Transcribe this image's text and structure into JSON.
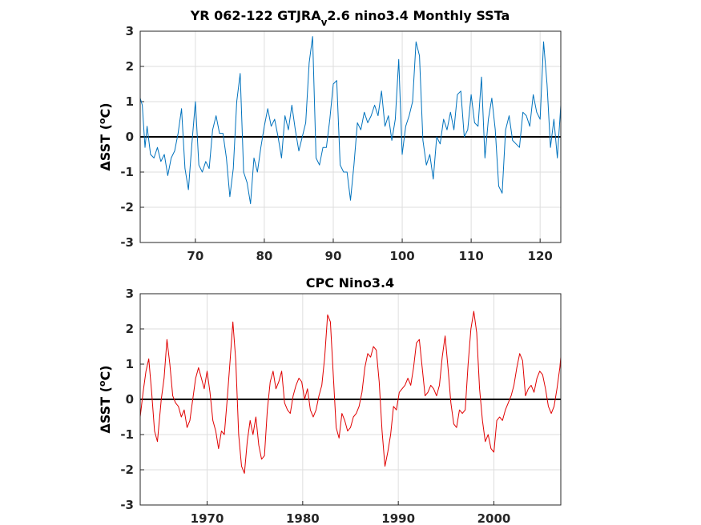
{
  "chart_data": [
    {
      "type": "line",
      "title_main": "YR 062-122 GTJRA",
      "title_sub": "v",
      "title_rest": "2.6 nino3.4 Monthly SSTa",
      "ylabel_delta": "Δ",
      "ylabel_text": "SST (",
      "ylabel_degree": "o",
      "ylabel_unit": "C)",
      "xlim": [
        62,
        123
      ],
      "ylim": [
        -3,
        3
      ],
      "xticks": [
        70,
        80,
        90,
        100,
        110,
        120
      ],
      "xtick_labels": [
        "70",
        "80",
        "90",
        "100",
        "110",
        "120"
      ],
      "yticks": [
        -3,
        -2,
        -1,
        0,
        1,
        2,
        3
      ],
      "ytick_labels": [
        "-3",
        "-2",
        "-1",
        "0",
        "1",
        "2",
        "3"
      ],
      "grid": true,
      "zero_line": true,
      "color": "#0072BD",
      "series": [
        {
          "x": [
            62.0,
            62.3,
            62.7,
            63.0,
            63.5,
            64.0,
            64.5,
            65.0,
            65.5,
            66.0,
            66.5,
            67.0,
            67.5,
            68.0,
            68.5,
            69.0,
            69.5,
            70.0,
            70.5,
            71.0,
            71.5,
            72.0,
            72.5,
            73.0,
            73.5,
            74.0,
            74.5,
            75.0,
            75.5,
            76.0,
            76.5,
            77.0,
            77.5,
            78.0,
            78.5,
            79.0,
            79.5,
            80.0,
            80.5,
            81.0,
            81.5,
            82.0,
            82.5,
            83.0,
            83.5,
            84.0,
            84.5,
            85.0,
            85.5,
            86.0,
            86.5,
            87.0,
            87.5,
            88.0,
            88.5,
            89.0,
            89.5,
            90.0,
            90.5,
            91.0,
            91.5,
            92.0,
            92.5,
            93.0,
            93.5,
            94.0,
            94.5,
            95.0,
            95.5,
            96.0,
            96.5,
            97.0,
            97.5,
            98.0,
            98.5,
            99.0,
            99.5,
            100.0,
            100.5,
            101.0,
            101.5,
            102.0,
            102.5,
            103.0,
            103.5,
            104.0,
            104.5,
            105.0,
            105.5,
            106.0,
            106.5,
            107.0,
            107.5,
            108.0,
            108.5,
            109.0,
            109.5,
            110.0,
            110.5,
            111.0,
            111.5,
            112.0,
            112.5,
            113.0,
            113.5,
            114.0,
            114.5,
            115.0,
            115.5,
            116.0,
            116.5,
            117.0,
            117.5,
            118.0,
            118.5,
            119.0,
            119.5,
            120.0,
            120.5,
            121.0,
            121.5,
            122.0,
            122.5,
            123.0
          ],
          "y": [
            1.1,
            0.9,
            -0.3,
            0.3,
            -0.5,
            -0.6,
            -0.3,
            -0.7,
            -0.5,
            -1.1,
            -0.6,
            -0.4,
            0.1,
            0.8,
            -0.9,
            -1.5,
            -0.2,
            1.0,
            -0.8,
            -1.0,
            -0.7,
            -0.9,
            0.2,
            0.6,
            0.1,
            0.1,
            -0.6,
            -1.7,
            -0.9,
            1.0,
            1.8,
            -1.0,
            -1.3,
            -1.9,
            -0.6,
            -1.0,
            -0.3,
            0.3,
            0.8,
            0.3,
            0.5,
            0.0,
            -0.6,
            0.6,
            0.2,
            0.9,
            0.2,
            -0.4,
            0.0,
            0.4,
            2.1,
            2.85,
            -0.6,
            -0.8,
            -0.3,
            -0.3,
            0.5,
            1.5,
            1.6,
            -0.8,
            -1.0,
            -1.0,
            -1.8,
            -0.8,
            0.4,
            0.2,
            0.7,
            0.4,
            0.6,
            0.9,
            0.6,
            1.3,
            0.3,
            0.6,
            -0.1,
            0.5,
            2.2,
            -0.5,
            0.3,
            0.6,
            1.0,
            2.7,
            2.3,
            -0.1,
            -0.8,
            -0.5,
            -1.2,
            0.0,
            -0.2,
            0.5,
            0.2,
            0.7,
            0.2,
            1.2,
            1.3,
            0.0,
            0.2,
            1.2,
            0.4,
            0.3,
            1.7,
            -0.6,
            0.5,
            1.1,
            0.2,
            -1.4,
            -1.6,
            0.2,
            0.6,
            -0.1,
            -0.2,
            -0.3,
            0.7,
            0.6,
            0.3,
            1.2,
            0.7,
            0.5,
            2.7,
            1.5,
            -0.3,
            0.5,
            -0.6,
            0.9
          ]
        }
      ]
    },
    {
      "type": "line",
      "title": "CPC Nino3.4",
      "ylabel_delta": "Δ",
      "ylabel_text": "SST (",
      "ylabel_degree": "o",
      "ylabel_unit": "C)",
      "xlim": [
        1963,
        2007
      ],
      "ylim": [
        -3,
        3
      ],
      "xticks": [
        1970,
        1980,
        1990,
        2000
      ],
      "xtick_labels": [
        "1970",
        "1980",
        "1990",
        "2000"
      ],
      "yticks": [
        -3,
        -2,
        -1,
        0,
        1,
        2,
        3
      ],
      "ytick_labels": [
        "-3",
        "-2",
        "-1",
        "0",
        "1",
        "2",
        "3"
      ],
      "grid": true,
      "zero_line": true,
      "color": "#E00000",
      "series": [
        {
          "x": [
            1963.0,
            1963.3,
            1963.6,
            1963.9,
            1964.2,
            1964.5,
            1964.8,
            1965.2,
            1965.5,
            1965.8,
            1966.1,
            1966.4,
            1966.7,
            1967.0,
            1967.3,
            1967.6,
            1967.9,
            1968.2,
            1968.5,
            1968.8,
            1969.1,
            1969.4,
            1969.7,
            1970.0,
            1970.3,
            1970.6,
            1970.9,
            1971.2,
            1971.5,
            1971.8,
            1972.1,
            1972.4,
            1972.7,
            1973.0,
            1973.3,
            1973.6,
            1973.9,
            1974.2,
            1974.5,
            1974.8,
            1975.1,
            1975.4,
            1975.7,
            1976.0,
            1976.3,
            1976.6,
            1976.9,
            1977.2,
            1977.5,
            1977.8,
            1978.1,
            1978.4,
            1978.7,
            1979.0,
            1979.3,
            1979.6,
            1979.9,
            1980.2,
            1980.5,
            1980.8,
            1981.1,
            1981.4,
            1981.7,
            1982.0,
            1982.3,
            1982.6,
            1982.9,
            1983.2,
            1983.5,
            1983.8,
            1984.1,
            1984.4,
            1984.7,
            1985.0,
            1985.3,
            1985.6,
            1985.9,
            1986.2,
            1986.5,
            1986.8,
            1987.1,
            1987.4,
            1987.7,
            1988.0,
            1988.3,
            1988.6,
            1988.9,
            1989.2,
            1989.5,
            1989.8,
            1990.1,
            1990.4,
            1990.7,
            1991.0,
            1991.3,
            1991.6,
            1991.9,
            1992.2,
            1992.5,
            1992.8,
            1993.1,
            1993.4,
            1993.7,
            1994.0,
            1994.3,
            1994.6,
            1994.9,
            1995.2,
            1995.5,
            1995.8,
            1996.1,
            1996.4,
            1996.7,
            1997.0,
            1997.3,
            1997.6,
            1997.9,
            1998.2,
            1998.5,
            1998.8,
            1999.1,
            1999.4,
            1999.7,
            2000.0,
            2000.3,
            2000.6,
            2000.9,
            2001.2,
            2001.5,
            2001.8,
            2002.1,
            2002.4,
            2002.7,
            2003.0,
            2003.3,
            2003.6,
            2003.9,
            2004.2,
            2004.5,
            2004.8,
            2005.1,
            2005.4,
            2005.7,
            2006.0,
            2006.3,
            2006.6,
            2006.9,
            2007.0
          ],
          "y": [
            -0.5,
            0.2,
            0.8,
            1.15,
            0.2,
            -0.9,
            -1.2,
            0.0,
            0.6,
            1.7,
            1.0,
            0.1,
            -0.1,
            -0.2,
            -0.5,
            -0.3,
            -0.8,
            -0.6,
            0.0,
            0.6,
            0.9,
            0.6,
            0.3,
            0.8,
            0.2,
            -0.6,
            -0.9,
            -1.4,
            -0.9,
            -1.0,
            0.0,
            1.1,
            2.2,
            1.1,
            -1.0,
            -1.9,
            -2.1,
            -1.2,
            -0.6,
            -1.0,
            -0.5,
            -1.3,
            -1.7,
            -1.6,
            -0.3,
            0.5,
            0.8,
            0.3,
            0.5,
            0.8,
            -0.1,
            -0.3,
            -0.4,
            0.1,
            0.4,
            0.6,
            0.5,
            0.0,
            0.3,
            -0.3,
            -0.5,
            -0.3,
            0.1,
            0.4,
            1.2,
            2.4,
            2.2,
            0.7,
            -0.8,
            -1.1,
            -0.4,
            -0.6,
            -0.9,
            -0.8,
            -0.5,
            -0.4,
            -0.2,
            0.2,
            0.9,
            1.3,
            1.2,
            1.5,
            1.4,
            0.5,
            -0.9,
            -1.9,
            -1.5,
            -1.0,
            -0.2,
            -0.3,
            0.2,
            0.3,
            0.4,
            0.6,
            0.4,
            0.9,
            1.6,
            1.7,
            0.9,
            0.1,
            0.2,
            0.4,
            0.3,
            0.1,
            0.4,
            1.2,
            1.8,
            0.9,
            -0.1,
            -0.7,
            -0.8,
            -0.3,
            -0.4,
            -0.3,
            1.0,
            2.0,
            2.5,
            1.9,
            0.3,
            -0.6,
            -1.2,
            -1.0,
            -1.4,
            -1.5,
            -0.6,
            -0.5,
            -0.6,
            -0.3,
            -0.1,
            0.1,
            0.4,
            0.9,
            1.3,
            1.1,
            0.1,
            0.3,
            0.4,
            0.2,
            0.6,
            0.8,
            0.7,
            0.3,
            -0.2,
            -0.4,
            -0.2,
            0.3,
            0.9,
            1.2
          ]
        }
      ]
    }
  ]
}
